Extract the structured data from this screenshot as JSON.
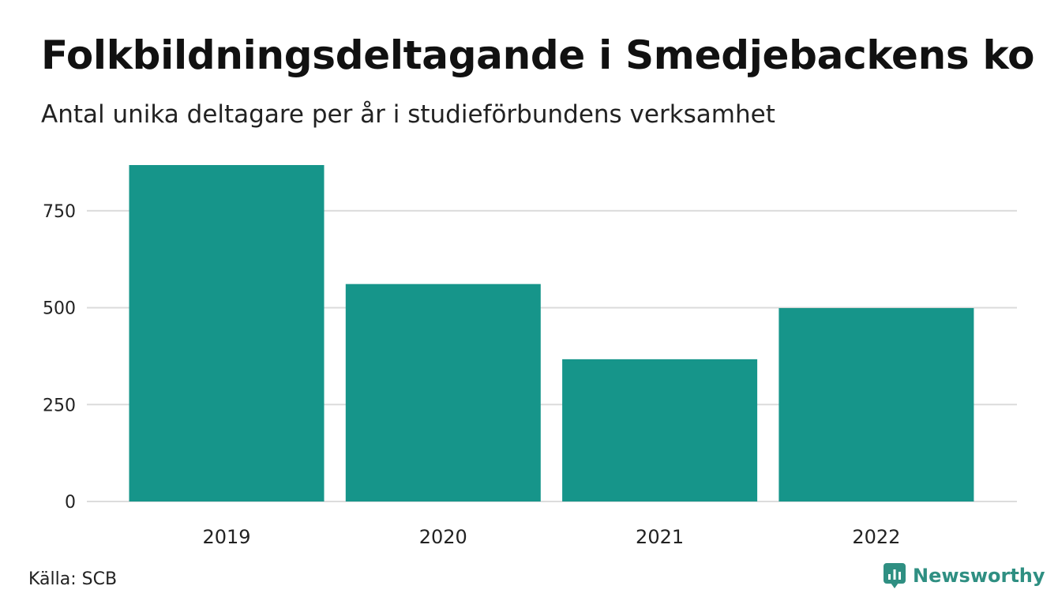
{
  "chart_data": {
    "type": "bar",
    "title": "Folkbildningsdeltagande i Smedjebackens kommun",
    "subtitle": "Antal unika deltagare per år i studieförbundens verksamhet",
    "categories": [
      "2019",
      "2020",
      "2021",
      "2022"
    ],
    "values": [
      868,
      561,
      367,
      499
    ],
    "yticks": [
      0,
      250,
      500,
      750
    ],
    "ylim": [
      0,
      870
    ],
    "grid": true,
    "legend": "none",
    "bar_color": "#16958a"
  },
  "footer": {
    "source": "Källa: SCB",
    "brand": "Newsworthy",
    "brand_icon": "newsworthy-logo-icon",
    "brand_color": "#2f8f82"
  }
}
